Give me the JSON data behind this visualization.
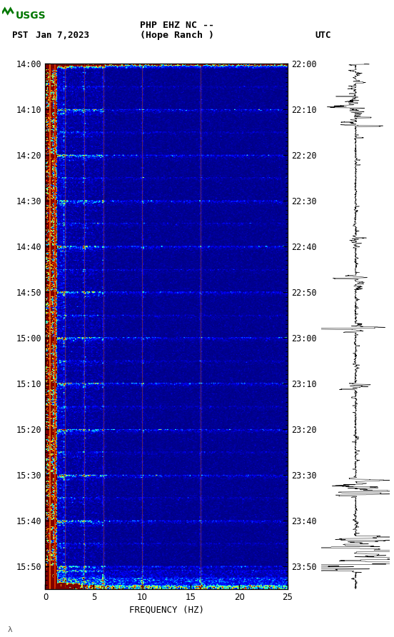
{
  "title_line1": "PHP EHZ NC --",
  "title_line2": "(Hope Ranch )",
  "left_label": "PST",
  "left_date": "Jan 7,2023",
  "right_label": "UTC",
  "xlabel": "FREQUENCY (HZ)",
  "yticks_left": [
    "14:00",
    "14:10",
    "14:20",
    "14:30",
    "14:40",
    "14:50",
    "15:00",
    "15:10",
    "15:20",
    "15:30",
    "15:40",
    "15:50"
  ],
  "yticks_right": [
    "22:00",
    "22:10",
    "22:20",
    "22:30",
    "22:40",
    "22:50",
    "23:00",
    "23:10",
    "23:20",
    "23:30",
    "23:40",
    "23:50"
  ],
  "xticks": [
    0,
    5,
    10,
    15,
    20,
    25
  ],
  "usgs_green": "#007700",
  "fig_width": 5.52,
  "fig_height": 8.92,
  "seed": 42,
  "n_time": 680,
  "n_freq": 250
}
